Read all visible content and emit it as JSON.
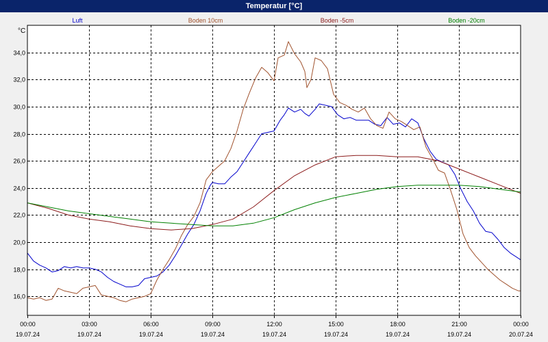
{
  "window": {
    "title": "Temperatur [°C]"
  },
  "chart_data": {
    "type": "line",
    "title": "Temperatur [°C]",
    "unit": "°C",
    "ylim": [
      14.6,
      36.0
    ],
    "yticks": [
      16.0,
      18.0,
      20.0,
      22.0,
      24.0,
      26.0,
      28.0,
      30.0,
      32.0,
      34.0
    ],
    "ytick_labels": [
      "16,0",
      "18,0",
      "20,0",
      "22,0",
      "24,0",
      "26,0",
      "28,0",
      "30,0",
      "32,0",
      "34,0"
    ],
    "xlim": [
      0,
      24
    ],
    "xtick_times": [
      "00:00",
      "03:00",
      "06:00",
      "09:00",
      "12:00",
      "15:00",
      "18:00",
      "21:00",
      "00:00"
    ],
    "xtick_dates": [
      "19.07.24",
      "19.07.24",
      "19.07.24",
      "19.07.24",
      "19.07.24",
      "19.07.24",
      "19.07.24",
      "19.07.24",
      "20.07.24"
    ],
    "grid": true,
    "legend_placement": "top",
    "series": [
      {
        "name": "Luft",
        "color": "#0000cc",
        "points": [
          [
            0,
            19.2
          ],
          [
            0.3,
            18.6
          ],
          [
            0.6,
            18.3
          ],
          [
            0.9,
            18.1
          ],
          [
            1.2,
            17.8
          ],
          [
            1.5,
            17.9
          ],
          [
            1.8,
            18.2
          ],
          [
            2.1,
            18.1
          ],
          [
            2.4,
            18.2
          ],
          [
            2.7,
            18.1
          ],
          [
            3.0,
            18.1
          ],
          [
            3.3,
            18.0
          ],
          [
            3.6,
            17.8
          ],
          [
            3.9,
            17.4
          ],
          [
            4.2,
            17.1
          ],
          [
            4.5,
            16.9
          ],
          [
            4.8,
            16.7
          ],
          [
            5.1,
            16.7
          ],
          [
            5.4,
            16.8
          ],
          [
            5.7,
            17.3
          ],
          [
            6.0,
            17.4
          ],
          [
            6.3,
            17.5
          ],
          [
            6.6,
            17.8
          ],
          [
            6.9,
            18.3
          ],
          [
            7.2,
            19.0
          ],
          [
            7.5,
            19.8
          ],
          [
            7.8,
            20.6
          ],
          [
            8.1,
            21.3
          ],
          [
            8.4,
            22.3
          ],
          [
            8.7,
            23.6
          ],
          [
            8.9,
            24.2
          ],
          [
            9.0,
            24.4
          ],
          [
            9.3,
            24.3
          ],
          [
            9.6,
            24.3
          ],
          [
            9.9,
            24.8
          ],
          [
            10.2,
            25.2
          ],
          [
            10.5,
            25.9
          ],
          [
            10.8,
            26.6
          ],
          [
            11.1,
            27.3
          ],
          [
            11.4,
            28.0
          ],
          [
            11.7,
            28.1
          ],
          [
            12.0,
            28.2
          ],
          [
            12.3,
            29.0
          ],
          [
            12.5,
            29.4
          ],
          [
            12.7,
            29.9
          ],
          [
            13.0,
            29.6
          ],
          [
            13.3,
            29.8
          ],
          [
            13.5,
            29.5
          ],
          [
            13.7,
            29.3
          ],
          [
            14.0,
            29.8
          ],
          [
            14.2,
            30.2
          ],
          [
            14.5,
            30.1
          ],
          [
            14.8,
            30.0
          ],
          [
            15.1,
            29.4
          ],
          [
            15.4,
            29.1
          ],
          [
            15.7,
            29.2
          ],
          [
            16.0,
            29.0
          ],
          [
            16.3,
            29.0
          ],
          [
            16.6,
            29.0
          ],
          [
            16.9,
            28.7
          ],
          [
            17.2,
            28.6
          ],
          [
            17.5,
            29.2
          ],
          [
            17.8,
            28.7
          ],
          [
            18.1,
            28.8
          ],
          [
            18.4,
            28.5
          ],
          [
            18.7,
            29.1
          ],
          [
            19.0,
            28.8
          ],
          [
            19.3,
            27.6
          ],
          [
            19.6,
            26.7
          ],
          [
            19.9,
            26.1
          ],
          [
            20.2,
            25.9
          ],
          [
            20.5,
            25.7
          ],
          [
            20.8,
            25.0
          ],
          [
            21.1,
            23.9
          ],
          [
            21.4,
            23.0
          ],
          [
            21.7,
            22.3
          ],
          [
            22.0,
            21.4
          ],
          [
            22.3,
            20.8
          ],
          [
            22.6,
            20.7
          ],
          [
            22.9,
            20.2
          ],
          [
            23.2,
            19.6
          ],
          [
            23.5,
            19.2
          ],
          [
            23.8,
            18.9
          ],
          [
            24.0,
            18.7
          ]
        ]
      },
      {
        "name": "Boden 10cm",
        "color": "#a0522d",
        "points": [
          [
            0,
            15.9
          ],
          [
            0.3,
            15.8
          ],
          [
            0.6,
            15.9
          ],
          [
            0.9,
            15.7
          ],
          [
            1.2,
            15.8
          ],
          [
            1.5,
            16.6
          ],
          [
            1.8,
            16.4
          ],
          [
            2.1,
            16.3
          ],
          [
            2.4,
            16.2
          ],
          [
            2.7,
            16.6
          ],
          [
            3.0,
            16.7
          ],
          [
            3.3,
            16.8
          ],
          [
            3.6,
            16.1
          ],
          [
            3.9,
            16.0
          ],
          [
            4.2,
            15.9
          ],
          [
            4.5,
            15.7
          ],
          [
            4.8,
            15.6
          ],
          [
            5.1,
            15.8
          ],
          [
            5.4,
            15.9
          ],
          [
            5.7,
            16.0
          ],
          [
            6.0,
            16.2
          ],
          [
            6.3,
            17.2
          ],
          [
            6.6,
            18.0
          ],
          [
            6.9,
            18.7
          ],
          [
            7.2,
            19.5
          ],
          [
            7.5,
            20.5
          ],
          [
            7.8,
            21.3
          ],
          [
            8.1,
            21.9
          ],
          [
            8.4,
            22.9
          ],
          [
            8.7,
            24.6
          ],
          [
            9.0,
            25.2
          ],
          [
            9.3,
            25.6
          ],
          [
            9.6,
            26.0
          ],
          [
            9.9,
            26.9
          ],
          [
            10.2,
            28.2
          ],
          [
            10.5,
            29.8
          ],
          [
            10.8,
            31.0
          ],
          [
            11.1,
            32.1
          ],
          [
            11.4,
            32.9
          ],
          [
            11.7,
            32.5
          ],
          [
            12.0,
            31.9
          ],
          [
            12.2,
            33.6
          ],
          [
            12.5,
            33.8
          ],
          [
            12.7,
            34.8
          ],
          [
            13.0,
            33.9
          ],
          [
            13.3,
            33.3
          ],
          [
            13.5,
            32.6
          ],
          [
            13.6,
            31.4
          ],
          [
            13.8,
            32.0
          ],
          [
            14.0,
            33.6
          ],
          [
            14.3,
            33.4
          ],
          [
            14.6,
            32.8
          ],
          [
            14.9,
            30.9
          ],
          [
            15.2,
            30.3
          ],
          [
            15.5,
            30.1
          ],
          [
            15.8,
            29.8
          ],
          [
            16.1,
            29.6
          ],
          [
            16.4,
            29.9
          ],
          [
            16.7,
            29.1
          ],
          [
            17.0,
            28.6
          ],
          [
            17.3,
            28.4
          ],
          [
            17.6,
            29.6
          ],
          [
            17.9,
            29.1
          ],
          [
            18.2,
            28.9
          ],
          [
            18.5,
            28.6
          ],
          [
            18.8,
            28.3
          ],
          [
            19.1,
            28.5
          ],
          [
            19.4,
            27.0
          ],
          [
            19.7,
            26.2
          ],
          [
            20.0,
            25.3
          ],
          [
            20.3,
            25.1
          ],
          [
            20.6,
            23.8
          ],
          [
            20.9,
            22.4
          ],
          [
            21.2,
            20.6
          ],
          [
            21.5,
            19.6
          ],
          [
            21.8,
            19.0
          ],
          [
            22.1,
            18.5
          ],
          [
            22.4,
            18.0
          ],
          [
            22.7,
            17.6
          ],
          [
            23.0,
            17.2
          ],
          [
            23.3,
            16.9
          ],
          [
            23.6,
            16.6
          ],
          [
            23.9,
            16.4
          ],
          [
            24.0,
            16.4
          ]
        ]
      },
      {
        "name": "Boden -5cm",
        "color": "#8b1a1a",
        "points": [
          [
            0,
            22.9
          ],
          [
            1.0,
            22.5
          ],
          [
            2.0,
            22.0
          ],
          [
            3.0,
            21.7
          ],
          [
            4.0,
            21.5
          ],
          [
            5.0,
            21.2
          ],
          [
            6.0,
            21.0
          ],
          [
            7.0,
            20.9
          ],
          [
            8.0,
            21.0
          ],
          [
            9.0,
            21.3
          ],
          [
            10.0,
            21.7
          ],
          [
            11.0,
            22.6
          ],
          [
            12.0,
            23.8
          ],
          [
            13.0,
            24.9
          ],
          [
            14.0,
            25.7
          ],
          [
            15.0,
            26.3
          ],
          [
            16.0,
            26.4
          ],
          [
            17.0,
            26.4
          ],
          [
            18.0,
            26.3
          ],
          [
            19.0,
            26.3
          ],
          [
            20.0,
            26.0
          ],
          [
            21.0,
            25.4
          ],
          [
            22.0,
            24.8
          ],
          [
            23.0,
            24.2
          ],
          [
            24.0,
            23.6
          ]
        ]
      },
      {
        "name": "Boden -20cm",
        "color": "#008000",
        "points": [
          [
            0,
            22.9
          ],
          [
            1.0,
            22.6
          ],
          [
            2.0,
            22.3
          ],
          [
            3.0,
            22.1
          ],
          [
            4.0,
            21.9
          ],
          [
            5.0,
            21.7
          ],
          [
            6.0,
            21.5
          ],
          [
            7.0,
            21.4
          ],
          [
            8.0,
            21.3
          ],
          [
            9.0,
            21.2
          ],
          [
            10.0,
            21.2
          ],
          [
            11.0,
            21.4
          ],
          [
            12.0,
            21.8
          ],
          [
            13.0,
            22.4
          ],
          [
            14.0,
            22.9
          ],
          [
            15.0,
            23.3
          ],
          [
            16.0,
            23.6
          ],
          [
            17.0,
            23.9
          ],
          [
            18.0,
            24.1
          ],
          [
            19.0,
            24.2
          ],
          [
            20.0,
            24.2
          ],
          [
            21.0,
            24.2
          ],
          [
            22.0,
            24.1
          ],
          [
            23.0,
            23.9
          ],
          [
            24.0,
            23.7
          ]
        ]
      }
    ]
  }
}
